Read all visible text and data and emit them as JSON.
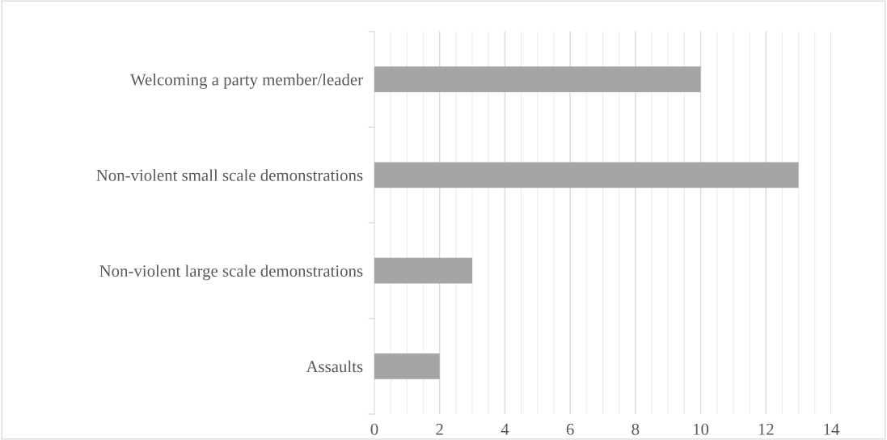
{
  "chart_data": {
    "type": "bar",
    "orientation": "horizontal",
    "categories": [
      "Welcoming a party member/leader",
      "Non-violent small scale demonstrations",
      "Non-violent large scale demonstrations",
      "Assaults"
    ],
    "values": [
      10,
      13,
      3,
      2
    ],
    "color": "#a5a5a5",
    "xlim": [
      0,
      14
    ],
    "xticks": [
      0,
      2,
      4,
      6,
      8,
      10,
      12,
      14
    ],
    "grid": "x"
  }
}
